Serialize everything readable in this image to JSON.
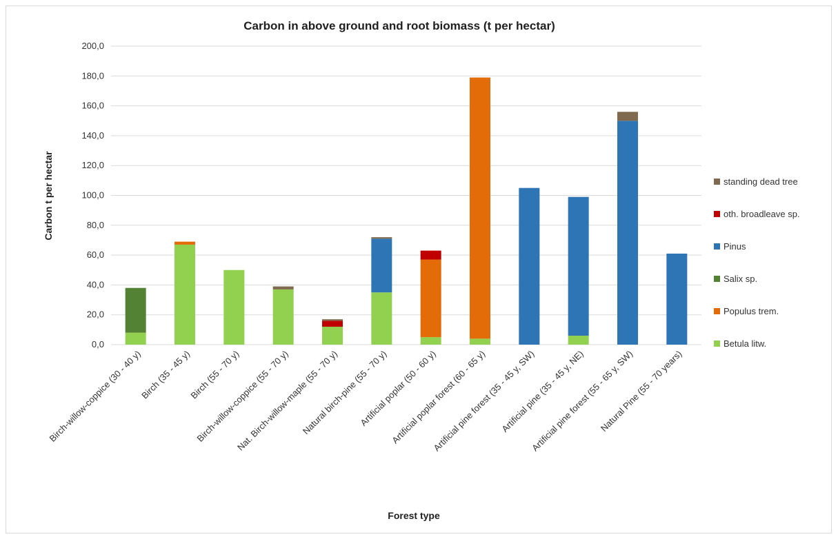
{
  "chart_data": {
    "type": "bar",
    "stacked": true,
    "title": "Carbon in above ground and root biomass (t per hectar)",
    "xlabel": "Forest type",
    "ylabel": "Carbon t per  hectar",
    "ylim": [
      0,
      200
    ],
    "ytick_step": 20,
    "ytick_labels": [
      "0,0",
      "20,0",
      "40,0",
      "60,0",
      "80,0",
      "100,0",
      "120,0",
      "140,0",
      "160,0",
      "180,0",
      "200,0"
    ],
    "grid": true,
    "legend_position": "right",
    "categories": [
      "Birch-willow-coppice (30 - 40 y)",
      "Birch (35 - 45 y)",
      "Birch (55 - 70 y)",
      "Birch-willow-coppice (55 - 70 y)",
      "Nat. Birch-willow-maple (55 - 70 y)",
      "Natural birch-pine (55 - 70  y)",
      "Artificial poplar (50 - 60 y)",
      "Artificial poplar forest (60 - 65 y)",
      "Artificial pine forest  (35 - 45 y, SW)",
      "Artificial pine  (35 - 45 y, NE)",
      "Artificial pine forest (55 - 65 y, SW)",
      "Natural Pine (55 - 70 years)"
    ],
    "series": [
      {
        "name": "Betula litw.",
        "color": "#92d050",
        "values": [
          8,
          67,
          50,
          37,
          12,
          35,
          5,
          4,
          0,
          6,
          0,
          0
        ]
      },
      {
        "name": "Populus trem.",
        "color": "#e36c09",
        "values": [
          0,
          2,
          0,
          0,
          0,
          0,
          52,
          175,
          0,
          0,
          0,
          0
        ]
      },
      {
        "name": "Salix sp.",
        "color": "#548235",
        "values": [
          30,
          0,
          0,
          0,
          0,
          0,
          0,
          0,
          0,
          0,
          0,
          0
        ]
      },
      {
        "name": "Pinus",
        "color": "#2e75b6",
        "values": [
          0,
          0,
          0,
          0,
          0,
          36,
          0,
          0,
          105,
          93,
          150,
          61
        ]
      },
      {
        "name": "oth. broadleave sp.",
        "color": "#c00000",
        "values": [
          0,
          0,
          0,
          0,
          4,
          0,
          6,
          0,
          0,
          0,
          0,
          0
        ]
      },
      {
        "name": "standing dead tree",
        "color": "#7f6a4f",
        "values": [
          0,
          0,
          0,
          2,
          1,
          1,
          0,
          0,
          0,
          0,
          6,
          0
        ]
      }
    ]
  }
}
